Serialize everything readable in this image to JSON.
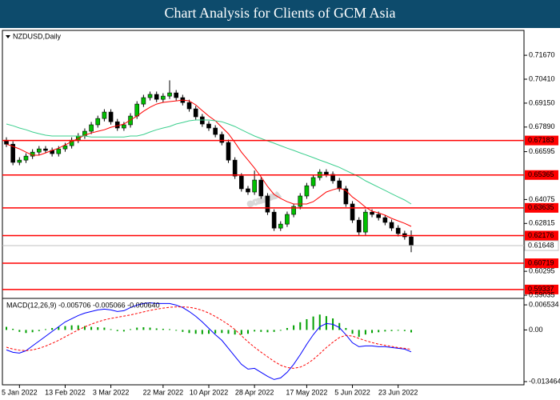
{
  "title": "Chart Analysis for Clients of GCM Asia",
  "chart_data": [
    {
      "type": "candlestick",
      "title": "NZDUSD,Daily",
      "categories": [
        null,
        null,
        "5 Jan 2022",
        null,
        null,
        null,
        null,
        null,
        null,
        "13 Feb 2022",
        null,
        null,
        null,
        null,
        null,
        null,
        "3 Mar 2022",
        null,
        null,
        null,
        null,
        null,
        null,
        null,
        "22 Mar 2022",
        null,
        null,
        null,
        null,
        null,
        null,
        "10 Apr 2022",
        null,
        null,
        null,
        null,
        null,
        null,
        "28 Apr 2022",
        null,
        null,
        null,
        null,
        null,
        null,
        null,
        "17 May 2022",
        null,
        null,
        null,
        null,
        null,
        null,
        "5 Jun 2022",
        null,
        null,
        null,
        null,
        null,
        null,
        "23 Jun 2022",
        null,
        null
      ],
      "open": [
        0.672,
        0.6699,
        0.6603,
        0.6615,
        0.6636,
        0.6657,
        0.6674,
        0.6666,
        0.6649,
        0.6674,
        0.6691,
        0.672,
        0.6742,
        0.6767,
        0.6801,
        0.6834,
        0.6868,
        0.6817,
        0.6784,
        0.6801,
        0.6847,
        0.691,
        0.6944,
        0.6961,
        0.6935,
        0.6952,
        0.6969,
        0.6944,
        0.6918,
        0.6885,
        0.6843,
        0.6805,
        0.6784,
        0.675,
        0.6708,
        0.6615,
        0.6531,
        0.6464,
        0.6447,
        0.651,
        0.6426,
        0.6341,
        0.6257,
        0.6278,
        0.6329,
        0.6371,
        0.6426,
        0.648,
        0.6523,
        0.6552,
        0.654,
        0.6506,
        0.6464,
        0.6384,
        0.6299,
        0.6236,
        0.6341,
        0.6329,
        0.6312,
        0.6287,
        0.6257,
        0.6228,
        0.6211
      ],
      "high": [
        0.6735,
        0.6714,
        0.663,
        0.6651,
        0.6672,
        0.6689,
        0.6689,
        0.6681,
        0.6689,
        0.6706,
        0.6735,
        0.6757,
        0.6782,
        0.6816,
        0.6849,
        0.6883,
        0.6883,
        0.6832,
        0.6816,
        0.6862,
        0.6925,
        0.6959,
        0.6976,
        0.6976,
        0.6967,
        0.7035,
        0.6984,
        0.6959,
        0.6933,
        0.69,
        0.6858,
        0.682,
        0.6799,
        0.6765,
        0.6723,
        0.663,
        0.6546,
        0.6479,
        0.656,
        0.6525,
        0.6441,
        0.6356,
        0.6293,
        0.6344,
        0.6386,
        0.6441,
        0.6495,
        0.6538,
        0.6567,
        0.6567,
        0.6555,
        0.6521,
        0.6479,
        0.6399,
        0.6314,
        0.6356,
        0.6356,
        0.6344,
        0.6327,
        0.6302,
        0.6272,
        0.6243,
        0.6245
      ],
      "low": [
        0.6684,
        0.6588,
        0.6588,
        0.66,
        0.6621,
        0.6642,
        0.6651,
        0.6634,
        0.6634,
        0.6659,
        0.6676,
        0.6705,
        0.6727,
        0.6752,
        0.6786,
        0.6819,
        0.6802,
        0.6769,
        0.6769,
        0.6786,
        0.6832,
        0.6895,
        0.6929,
        0.692,
        0.692,
        0.6937,
        0.6929,
        0.6903,
        0.687,
        0.6828,
        0.679,
        0.6769,
        0.6735,
        0.6693,
        0.66,
        0.6516,
        0.6449,
        0.6432,
        0.6432,
        0.6411,
        0.6326,
        0.6242,
        0.6242,
        0.6263,
        0.6314,
        0.6356,
        0.6411,
        0.6465,
        0.6508,
        0.6525,
        0.6491,
        0.6449,
        0.6369,
        0.6284,
        0.6221,
        0.6221,
        0.6314,
        0.6297,
        0.6272,
        0.6242,
        0.6213,
        0.6196,
        0.613
      ],
      "close": [
        0.6699,
        0.6603,
        0.6615,
        0.6636,
        0.6657,
        0.6674,
        0.6666,
        0.6649,
        0.6674,
        0.6691,
        0.672,
        0.6742,
        0.6767,
        0.6801,
        0.6834,
        0.6868,
        0.6817,
        0.6784,
        0.6801,
        0.6847,
        0.691,
        0.6944,
        0.6961,
        0.6935,
        0.6952,
        0.6969,
        0.6944,
        0.6918,
        0.6885,
        0.6843,
        0.6805,
        0.6784,
        0.675,
        0.6708,
        0.6615,
        0.6531,
        0.6464,
        0.6447,
        0.651,
        0.6426,
        0.6341,
        0.6257,
        0.6278,
        0.6329,
        0.6371,
        0.6426,
        0.648,
        0.6523,
        0.6552,
        0.654,
        0.6506,
        0.6464,
        0.6384,
        0.6299,
        0.6236,
        0.6341,
        0.6329,
        0.6312,
        0.6287,
        0.6257,
        0.6228,
        0.6211,
        0.6165
      ],
      "up_color": "#00c000",
      "down_color": "#000000",
      "overlays": [
        {
          "color": "#ff0000",
          "values": [
            0.6699,
            0.6687,
            0.6674,
            0.6657,
            0.6641,
            0.6641,
            0.6653,
            0.6666,
            0.6678,
            0.6695,
            0.6712,
            0.6729,
            0.6746,
            0.6758,
            0.6767,
            0.6775,
            0.6788,
            0.6796,
            0.6805,
            0.6826,
            0.6847,
            0.6872,
            0.6893,
            0.691,
            0.6919,
            0.6923,
            0.6927,
            0.6931,
            0.6927,
            0.6906,
            0.6876,
            0.6847,
            0.6822,
            0.6788,
            0.6754,
            0.6708,
            0.6657,
            0.6615,
            0.6573,
            0.6527,
            0.6476,
            0.6434,
            0.6413,
            0.6396,
            0.6384,
            0.6384,
            0.6384,
            0.6396,
            0.6421,
            0.6447,
            0.6459,
            0.6468,
            0.6455,
            0.6421,
            0.6396,
            0.6367,
            0.6346,
            0.6337,
            0.6325,
            0.6308,
            0.6295,
            0.6282,
            0.6266
          ]
        },
        {
          "color": "#3ccf8e",
          "values": [
            0.6805,
            0.6796,
            0.6784,
            0.6775,
            0.6763,
            0.6754,
            0.6746,
            0.6742,
            0.6742,
            0.6742,
            0.6742,
            0.6742,
            0.6742,
            0.6737,
            0.6737,
            0.6737,
            0.6737,
            0.6737,
            0.6737,
            0.6742,
            0.6742,
            0.675,
            0.6763,
            0.6775,
            0.6784,
            0.6792,
            0.6805,
            0.6813,
            0.6822,
            0.6826,
            0.6826,
            0.6826,
            0.6822,
            0.6817,
            0.6805,
            0.6792,
            0.6775,
            0.6758,
            0.6742,
            0.6729,
            0.6716,
            0.6704,
            0.6691,
            0.6678,
            0.6666,
            0.6653,
            0.6641,
            0.6628,
            0.6615,
            0.6603,
            0.659,
            0.6577,
            0.656,
            0.6544,
            0.6527,
            0.6506,
            0.6489,
            0.6472,
            0.6455,
            0.6438,
            0.6421,
            0.6405,
            0.6384
          ]
        }
      ],
      "levels": [
        0.67183,
        0.65365,
        0.63635,
        0.62176,
        0.60719,
        0.59337
      ],
      "level_color": "#ff0000",
      "last_price": 0.61648,
      "last_price_color": "#c0c0c0",
      "ylim": [
        0.5891,
        0.7298
      ],
      "yticks": [
        {
          "value": 0.7167,
          "label": "0.71670"
        },
        {
          "value": 0.7041,
          "label": "0.70410"
        },
        {
          "value": 0.6915,
          "label": "0.69150"
        },
        {
          "value": 0.6789,
          "label": "0.67890"
        },
        0.66595,
        0.64075,
        0.62815,
        0.60295,
        0.59035
      ],
      "watermark": "GCMASIA"
    },
    {
      "type": "macd",
      "title": "MACD(12,26,9) -0.005706 -0.005066 -0.000640",
      "histogram": {
        "color": "#00a000",
        "values": [
          0.0008,
          0.0003,
          -0.0005,
          -0.0008,
          -0.0006,
          -0.0003,
          0.0002,
          0.0005,
          0.0008,
          0.001,
          0.0012,
          0.0012,
          0.001,
          0.0008,
          0.0007,
          0.0006,
          0.0002,
          -0.0003,
          -0.0004,
          0.0002,
          0.0006,
          0.0007,
          0.0006,
          0.0004,
          0.0003,
          0.0002,
          -0.0002,
          -0.0005,
          -0.0008,
          -0.001,
          -0.0011,
          -0.001,
          -0.0009,
          -0.0008,
          -0.001,
          -0.0012,
          -0.0012,
          -0.001,
          -0.0004,
          -0.0005,
          -0.0006,
          -0.0005,
          -0.0002,
          0.0005,
          0.0012,
          0.002,
          0.0028,
          0.0035,
          0.004,
          0.0036,
          0.003,
          0.0018,
          0.0005,
          -0.001,
          -0.0018,
          -0.0012,
          -0.0008,
          -0.0006,
          -0.0004,
          -0.0003,
          -0.0002,
          -0.0003,
          -0.00064
        ]
      },
      "series": [
        {
          "color": "#0000ff",
          "values": [
            -0.00521,
            -0.00583,
            -0.00604,
            -0.00542,
            -0.00417,
            -0.00292,
            -0.00167,
            -0.00042,
            0.00083,
            0.00208,
            0.00292,
            0.00375,
            0.00438,
            0.00479,
            0.00521,
            0.00542,
            0.00521,
            0.00479,
            0.005,
            0.00583,
            0.00646,
            0.00688,
            0.00708,
            0.00688,
            0.00688,
            0.00688,
            0.00646,
            0.00583,
            0.00479,
            0.00354,
            0.00208,
            0.00042,
            -0.00125,
            -0.00271,
            -0.00479,
            -0.00688,
            -0.00896,
            -0.01021,
            -0.01,
            -0.01104,
            -0.01208,
            -0.01292,
            -0.0125,
            -0.01104,
            -0.00896,
            -0.00646,
            -0.00375,
            -0.00125,
            0.00083,
            0.00167,
            0.00146,
            0.00063,
            -0.00125,
            -0.00333,
            -0.00438,
            -0.00417,
            -0.00417,
            -0.00438,
            -0.00438,
            -0.00458,
            -0.00479,
            -0.005,
            -0.005706
          ]
        },
        {
          "color": "#ff0000",
          "dashed": true,
          "values": [
            -0.0045,
            -0.005,
            -0.0053,
            -0.0054,
            -0.0052,
            -0.0048,
            -0.0042,
            -0.0035,
            -0.0027,
            -0.0018,
            -0.0009,
            0,
            0.0008,
            0.0015,
            0.0021,
            0.0026,
            0.003,
            0.0033,
            0.0036,
            0.0039,
            0.0043,
            0.0047,
            0.0051,
            0.0054,
            0.0057,
            0.0059,
            0.006,
            0.006,
            0.0059,
            0.0056,
            0.0051,
            0.0044,
            0.0035,
            0.0025,
            0.0014,
            0.0001,
            -0.0015,
            -0.0031,
            -0.0045,
            -0.0058,
            -0.007,
            -0.0082,
            -0.0092,
            -0.0098,
            -0.01,
            -0.0097,
            -0.0089,
            -0.0077,
            -0.0062,
            -0.0046,
            -0.0032,
            -0.002,
            -0.0014,
            -0.0016,
            -0.0022,
            -0.0028,
            -0.0033,
            -0.0037,
            -0.004,
            -0.0043,
            -0.0046,
            -0.0048,
            -0.005066
          ]
        }
      ],
      "ylim": [
        -0.0143,
        0.0078
      ],
      "yticks": [
        0.006534,
        {
          "value": 0,
          "label": "0.00"
        },
        -0.013464
      ]
    }
  ]
}
